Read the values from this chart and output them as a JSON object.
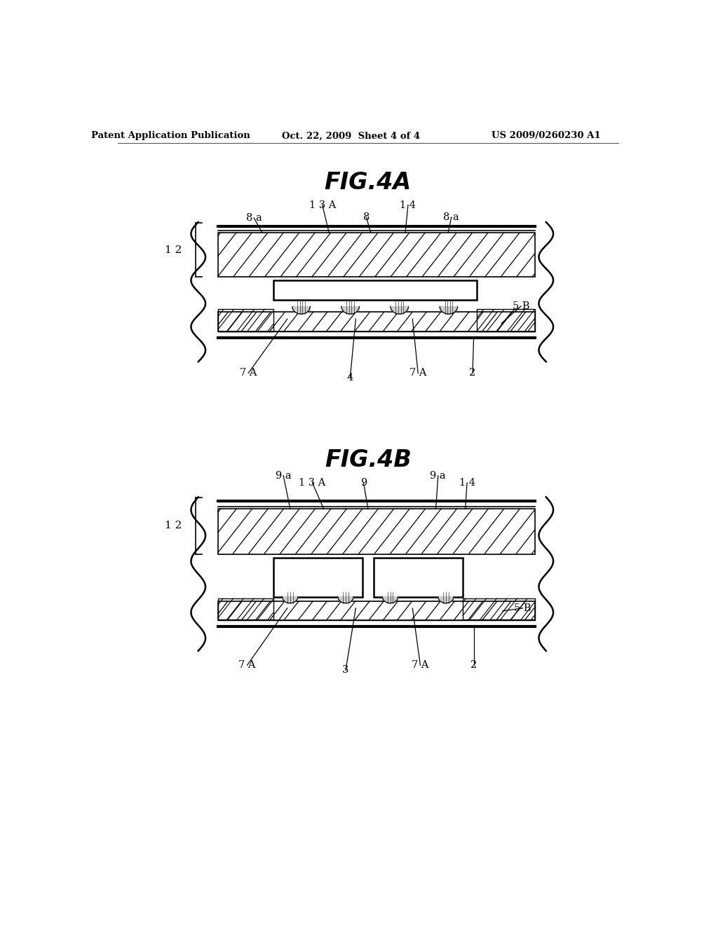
{
  "bg_color": "#ffffff",
  "header_text": "Patent Application Publication",
  "header_date": "Oct. 22, 2009  Sheet 4 of 4",
  "header_patent": "US 2009/0260230 A1",
  "fig4a_title": "FIG.4A",
  "fig4b_title": "FIG.4B"
}
